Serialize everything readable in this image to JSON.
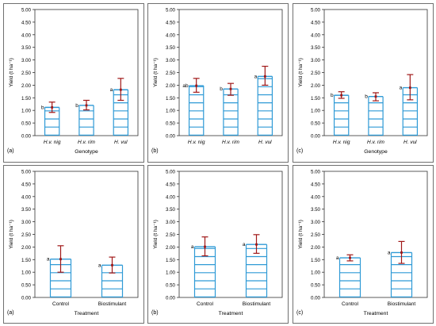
{
  "colors": {
    "bar": "#2f9ad6",
    "error": "#a01818",
    "frame": "#707070",
    "text": "#000000"
  },
  "chart_data": [
    {
      "type": "bar",
      "panel_label": "(a)",
      "xlabel": "Genotype",
      "ylabel": "Yield (t ha⁻¹)",
      "ylim": [
        0,
        5
      ],
      "yticks": [
        "0.00",
        "0.50",
        "1.00",
        "1.50",
        "2.00",
        "2.50",
        "3.00",
        "3.50",
        "4.00",
        "4.50",
        "5.00"
      ],
      "categories": [
        "H.v. nig",
        "H.v. rim",
        "H. vul"
      ],
      "categories_italic": true,
      "values": [
        1.12,
        1.2,
        1.82
      ],
      "err_low": [
        0.92,
        1.02,
        1.4
      ],
      "err_high": [
        1.33,
        1.4,
        2.27
      ],
      "letters": [
        "b",
        "b",
        "a"
      ],
      "grid": false
    },
    {
      "type": "bar",
      "panel_label": "(b)",
      "xlabel": "",
      "ylabel": "Yield (t ha⁻¹)",
      "ylim": [
        0,
        5
      ],
      "yticks": [
        "0.00",
        "0.50",
        "1.00",
        "1.50",
        "2.00",
        "2.50",
        "3.00",
        "3.50",
        "4.00",
        "4.50",
        "5.00"
      ],
      "categories": [
        "H.v. nig",
        "H.v. rim",
        "H. vul"
      ],
      "categories_italic": true,
      "values": [
        1.98,
        1.85,
        2.35
      ],
      "err_low": [
        1.72,
        1.6,
        2.0
      ],
      "err_high": [
        2.27,
        2.07,
        2.75
      ],
      "letters": [
        "ab",
        "b",
        "a"
      ],
      "grid": false
    },
    {
      "type": "bar",
      "panel_label": "(c)",
      "xlabel": "Genotype",
      "ylabel": "Yield (t ha⁻¹)",
      "ylim": [
        0,
        5
      ],
      "yticks": [
        "0.00",
        "0.50",
        "1.00",
        "1.50",
        "2.00",
        "2.50",
        "3.00",
        "3.50",
        "4.00",
        "4.50",
        "5.00"
      ],
      "categories": [
        "H.v. nig",
        "H.v. rim",
        "H. vul"
      ],
      "categories_italic": true,
      "values": [
        1.6,
        1.55,
        1.9
      ],
      "err_low": [
        1.48,
        1.38,
        1.42
      ],
      "err_high": [
        1.74,
        1.7,
        2.42
      ],
      "letters": [
        "b",
        "b",
        "a"
      ],
      "grid": false
    },
    {
      "type": "bar",
      "panel_label": "(a)",
      "xlabel": "Treatment",
      "ylabel": "Yield (t ha⁻¹)",
      "ylim": [
        0,
        5
      ],
      "yticks": [
        "0.00",
        "0.50",
        "1.00",
        "1.50",
        "2.00",
        "2.50",
        "3.00",
        "3.50",
        "4.00",
        "4.50",
        "5.00"
      ],
      "categories": [
        "Control",
        "Biostimulant"
      ],
      "categories_italic": false,
      "values": [
        1.52,
        1.28
      ],
      "err_low": [
        1.0,
        0.97
      ],
      "err_high": [
        2.05,
        1.6
      ],
      "letters": [
        "a",
        "a"
      ],
      "grid": false
    },
    {
      "type": "bar",
      "panel_label": "(b)",
      "xlabel": "Treatment",
      "ylabel": "Yield (t ha⁻¹)",
      "ylim": [
        0,
        5
      ],
      "yticks": [
        "0.00",
        "0.50",
        "1.00",
        "1.50",
        "2.00",
        "2.50",
        "3.00",
        "3.50",
        "4.00",
        "4.50",
        "5.00"
      ],
      "categories": [
        "Control",
        "Biostimulant"
      ],
      "categories_italic": false,
      "values": [
        2.01,
        2.1
      ],
      "err_low": [
        1.65,
        1.75
      ],
      "err_high": [
        2.4,
        2.49
      ],
      "letters": [
        "a",
        "a"
      ],
      "grid": false
    },
    {
      "type": "bar",
      "panel_label": "(c)",
      "xlabel": "Treatment",
      "ylabel": "Yield (t ha⁻¹)",
      "ylim": [
        0,
        5
      ],
      "yticks": [
        "0.00",
        "0.50",
        "1.00",
        "1.50",
        "2.00",
        "2.50",
        "3.00",
        "3.50",
        "4.00",
        "4.50",
        "5.00"
      ],
      "categories": [
        "Control",
        "Biostimulant"
      ],
      "categories_italic": false,
      "values": [
        1.57,
        1.78
      ],
      "err_low": [
        1.45,
        1.35
      ],
      "err_high": [
        1.69,
        2.22
      ],
      "letters": [
        "a",
        "a"
      ],
      "grid": false
    }
  ]
}
